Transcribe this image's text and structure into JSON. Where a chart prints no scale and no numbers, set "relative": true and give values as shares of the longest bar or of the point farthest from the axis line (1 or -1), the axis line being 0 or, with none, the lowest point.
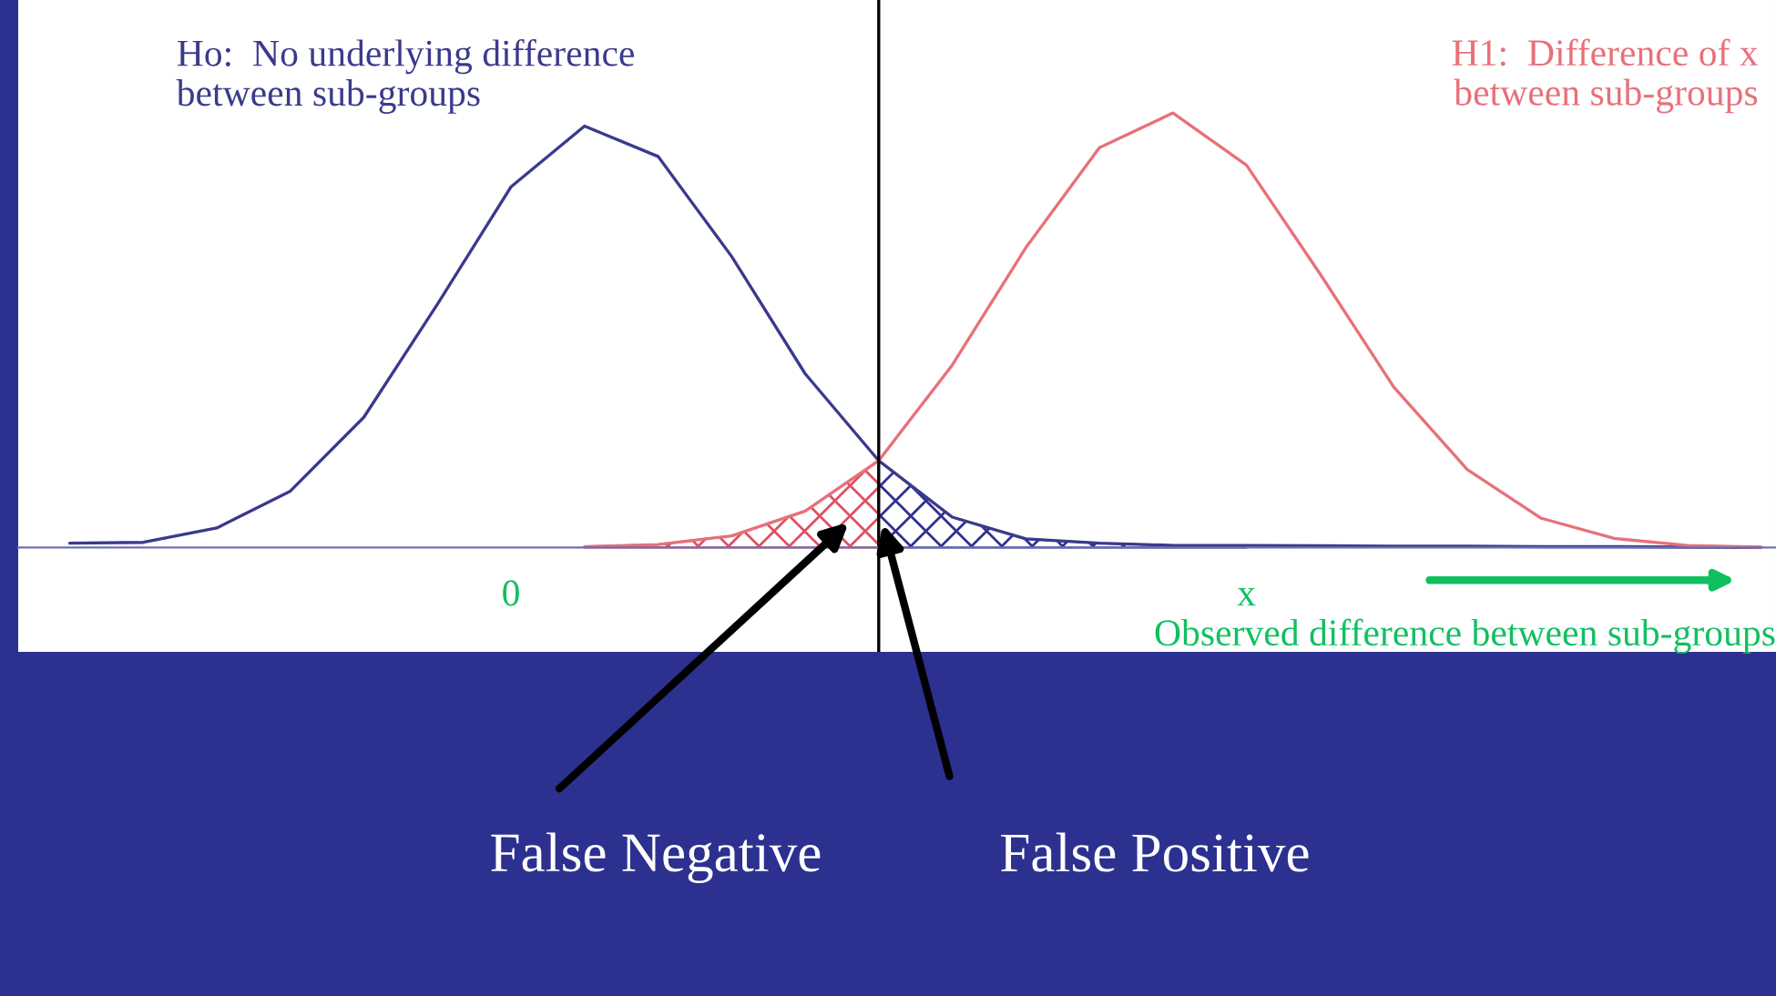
{
  "chart_data": {
    "type": "line",
    "relative": true,
    "categories": [
      null,
      null,
      null,
      null,
      null,
      null,
      "0",
      null,
      null,
      null,
      null,
      null,
      null,
      null,
      null,
      null,
      "x",
      null,
      null,
      null,
      null,
      null,
      null,
      null
    ],
    "xlabel": "Observed difference between sub-groups",
    "series": [
      {
        "name": "Ho:  No underlying difference\nbetween sub-groups",
        "color": "#3a3a8c",
        "values": [
          0.01,
          0.012,
          0.045,
          0.13,
          0.3,
          0.56,
          0.83,
          0.97,
          0.9,
          0.67,
          0.4,
          0.2,
          0.07,
          0.02,
          0.01,
          0.005,
          0.005,
          0.004,
          0.003,
          0.003,
          0.002,
          0.002,
          0.001,
          0
        ]
      },
      {
        "name": "H1:  Difference of x\nbetween sub-groups",
        "color": "#e8707a",
        "values": [
          null,
          null,
          null,
          null,
          null,
          null,
          null,
          0.002,
          0.007,
          0.027,
          0.084,
          0.2,
          0.42,
          0.69,
          0.92,
          1.0,
          0.88,
          0.63,
          0.37,
          0.18,
          0.068,
          0.021,
          0.005,
          0.001
        ]
      },
      {
        "type": "area",
        "color": "#e05060",
        "values": [
          null,
          null,
          null,
          null,
          null,
          null,
          null,
          0.002,
          0.007,
          0.027,
          0.084,
          0.2,
          null,
          null,
          null,
          null,
          null,
          null,
          null,
          null,
          null,
          null,
          null,
          null
        ]
      },
      {
        "type": "area",
        "color": "#303090",
        "values": [
          null,
          null,
          null,
          null,
          null,
          null,
          null,
          null,
          null,
          null,
          null,
          0.2,
          0.07,
          0.02,
          0.01,
          0.005,
          0.005,
          null,
          null,
          null,
          null,
          null,
          null,
          null
        ]
      }
    ],
    "annotations": [
      "False Negative",
      "False Positive"
    ]
  }
}
